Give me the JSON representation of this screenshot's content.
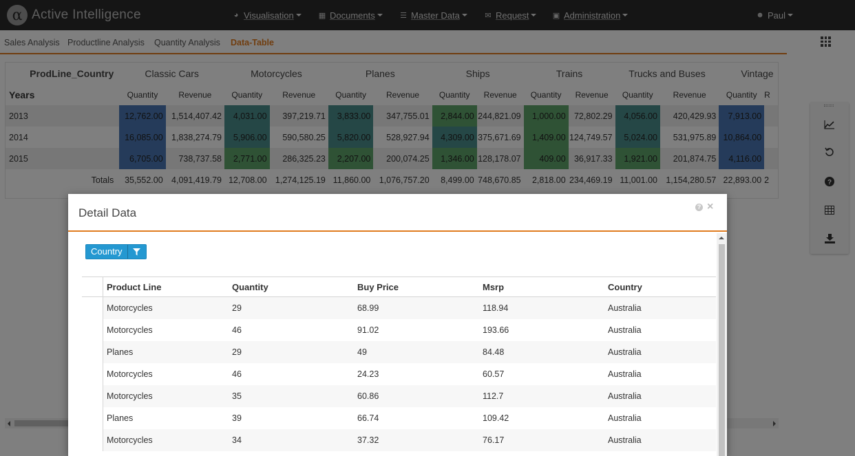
{
  "brand": {
    "logo": "α",
    "name": "Active Intelligence"
  },
  "nav": {
    "items": [
      {
        "icon": "dashboard-icon",
        "glyph": "◕",
        "label": "Visualisation"
      },
      {
        "icon": "documents-icon",
        "glyph": "▦",
        "label": "Documents"
      },
      {
        "icon": "database-icon",
        "glyph": "☰",
        "label": "Master Data"
      },
      {
        "icon": "envelope-icon",
        "glyph": "✉",
        "label": "Request"
      },
      {
        "icon": "briefcase-icon",
        "glyph": "▣",
        "label": "Administration"
      }
    ],
    "user": {
      "icon": "user-icon",
      "glyph": "👤",
      "label": "Paul"
    }
  },
  "tabs": [
    "Sales Analysis",
    "Productline Analysis",
    "Quantity Analysis",
    "Data-Table"
  ],
  "active_tab": "Data-Table",
  "pivot": {
    "corner_label": "ProdLine_Country",
    "years_label": "Years",
    "product_lines": [
      "Classic Cars",
      "Motorcycles",
      "Planes",
      "Ships",
      "Trains",
      "Trucks and Buses",
      "Vintage"
    ],
    "measures": [
      "Quantity",
      "Revenue"
    ],
    "rows": [
      {
        "year": "2013",
        "cells": [
          "12,762.00",
          "1,514,407.42",
          "4,031.00",
          "397,219.71",
          "3,833.00",
          "347,755.01",
          "2,844.00",
          "244,821.09",
          "1,000.00",
          "72,802.29",
          "4,056.00",
          "420,429.93",
          "7,913.00"
        ]
      },
      {
        "year": "2014",
        "cells": [
          "16,085.00",
          "1,838,274.79",
          "5,906.00",
          "590,580.25",
          "5,820.00",
          "528,927.94",
          "4,309.00",
          "375,671.69",
          "1,409.00",
          "124,749.57",
          "5,024.00",
          "531,975.89",
          "10,864.00"
        ]
      },
      {
        "year": "2015",
        "cells": [
          "6,705.00",
          "738,737.58",
          "2,771.00",
          "286,325.23",
          "2,207.00",
          "200,074.25",
          "1,346.00",
          "128,178.07",
          "409.00",
          "36,917.33",
          "1,921.00",
          "201,874.75",
          "4,116.00"
        ]
      }
    ],
    "totals_label": "Totals",
    "totals": [
      "35,552.00",
      "4,091,419.79",
      "12,708.00",
      "1,274,125.19",
      "11,860.00",
      "1,076,757.20",
      "8,499.00",
      "748,670.85",
      "2,818.00",
      "234,469.19",
      "11,001.00",
      "1,154,280.57",
      "22,893.00"
    ],
    "colors": {
      "blue": "#4a77b4",
      "green": "#5fa56b",
      "teal": "#4b8e8c"
    }
  },
  "side_tools": [
    {
      "icon": "line-chart-icon",
      "glyph": "📈"
    },
    {
      "icon": "undo-icon",
      "glyph": "↺"
    },
    {
      "icon": "help-icon",
      "glyph": "?"
    },
    {
      "icon": "table-icon",
      "glyph": "⊞"
    },
    {
      "icon": "download-icon",
      "glyph": "⤓"
    }
  ],
  "modal": {
    "title": "Detail Data",
    "filter_label": "Country",
    "columns": [
      "Product Line",
      "Quantity",
      "Buy Price",
      "Msrp",
      "Country"
    ],
    "rows": [
      [
        "Motorcycles",
        "29",
        "68.99",
        "118.94",
        "Australia"
      ],
      [
        "Motorcycles",
        "46",
        "91.02",
        "193.66",
        "Australia"
      ],
      [
        "Planes",
        "29",
        "49",
        "84.48",
        "Australia"
      ],
      [
        "Motorcycles",
        "46",
        "24.23",
        "60.57",
        "Australia"
      ],
      [
        "Motorcycles",
        "35",
        "60.86",
        "112.7",
        "Australia"
      ],
      [
        "Planes",
        "39",
        "66.74",
        "109.42",
        "Australia"
      ],
      [
        "Motorcycles",
        "34",
        "37.32",
        "76.17",
        "Australia"
      ]
    ]
  },
  "accent_color": "#e07b1f"
}
